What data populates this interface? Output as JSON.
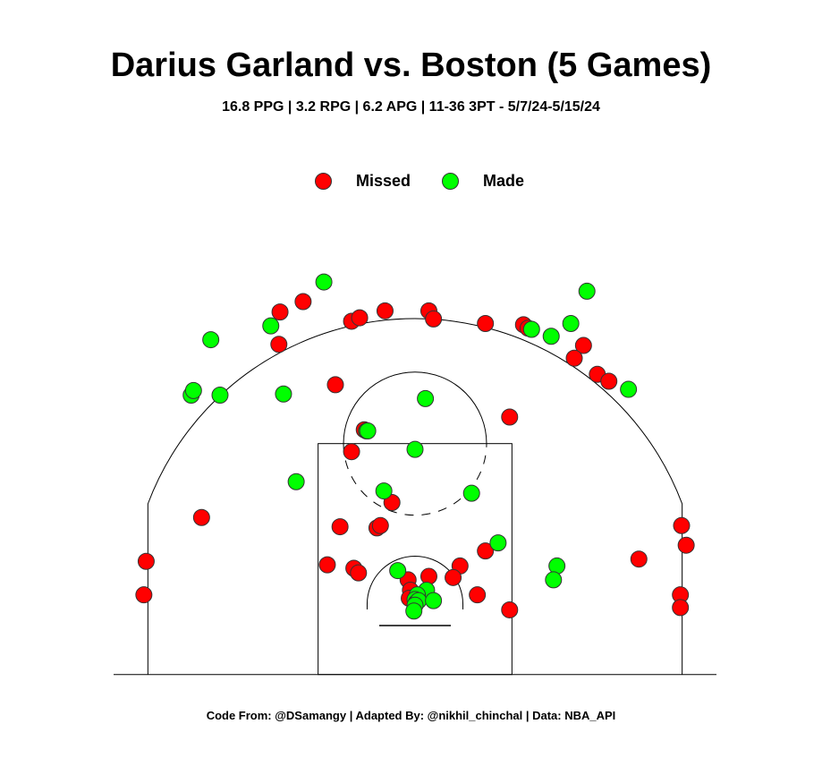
{
  "title": "Darius Garland vs. Boston (5 Games)",
  "subtitle": "16.8 PPG | 3.2 RPG | 6.2 APG | 11-36 3PT - 5/7/24-5/15/24",
  "caption": "Code From: @DSamangy | Adapted By: @nikhil_chinchal | Data: NBA_API",
  "colors": {
    "missed": "#ff0000",
    "made": "#00ff00",
    "court_line": "#000000"
  },
  "chart_data": {
    "type": "scatter",
    "legend": {
      "position": "top-center",
      "entries": [
        "Missed",
        "Made"
      ]
    },
    "grid": false,
    "units": "feet, relative to basket center (x lateral, y toward halfcourt)",
    "xlim": [
      -25,
      25
    ],
    "ylim": [
      -5.25,
      28
    ],
    "series": [
      {
        "name": "Missed",
        "color": "#ff0000",
        "points": [
          [
            -11.7,
            25.3
          ],
          [
            -9.7,
            26.2
          ],
          [
            -5.5,
            24.5
          ],
          [
            -4.8,
            24.8
          ],
          [
            -2.6,
            25.4
          ],
          [
            1.2,
            25.4
          ],
          [
            1.6,
            24.7
          ],
          [
            6.1,
            24.3
          ],
          [
            9.4,
            24.2
          ],
          [
            9.8,
            23.9
          ],
          [
            14.6,
            22.4
          ],
          [
            13.8,
            21.3
          ],
          [
            15.8,
            19.9
          ],
          [
            16.8,
            19.3
          ],
          [
            -11.8,
            22.5
          ],
          [
            -6.9,
            19.0
          ],
          [
            8.2,
            16.2
          ],
          [
            -4.4,
            15.1
          ],
          [
            -5.5,
            13.2
          ],
          [
            -18.5,
            7.5
          ],
          [
            -2.0,
            8.8
          ],
          [
            -6.5,
            6.7
          ],
          [
            -3.3,
            6.6
          ],
          [
            -3.0,
            6.8
          ],
          [
            -7.6,
            3.4
          ],
          [
            -5.3,
            3.1
          ],
          [
            -4.9,
            2.7
          ],
          [
            6.1,
            4.6
          ],
          [
            3.9,
            3.3
          ],
          [
            3.3,
            2.3
          ],
          [
            -0.6,
            2.1
          ],
          [
            1.2,
            2.4
          ],
          [
            -0.4,
            1.2
          ],
          [
            -0.5,
            0.5
          ],
          [
            5.4,
            0.8
          ],
          [
            8.2,
            -0.5
          ],
          [
            19.4,
            3.9
          ],
          [
            23.1,
            6.8
          ],
          [
            23.5,
            5.1
          ],
          [
            -23.3,
            3.7
          ],
          [
            -23.5,
            0.8
          ],
          [
            23.0,
            0.8
          ],
          [
            23.0,
            -0.3
          ]
        ]
      },
      {
        "name": "Made",
        "color": "#00ff00",
        "points": [
          [
            -7.9,
            27.9
          ],
          [
            -12.5,
            24.1
          ],
          [
            -17.7,
            22.9
          ],
          [
            -19.4,
            18.1
          ],
          [
            -19.2,
            18.5
          ],
          [
            -16.9,
            18.1
          ],
          [
            -11.4,
            18.2
          ],
          [
            0.9,
            17.8
          ],
          [
            -4.2,
            15.0
          ],
          [
            0.0,
            13.4
          ],
          [
            -10.3,
            10.6
          ],
          [
            -2.7,
            9.8
          ],
          [
            4.9,
            9.6
          ],
          [
            7.2,
            5.3
          ],
          [
            -1.5,
            2.9
          ],
          [
            12.3,
            3.3
          ],
          [
            12.0,
            2.1
          ],
          [
            1.0,
            1.2
          ],
          [
            0.2,
            0.8
          ],
          [
            0.0,
            0.4
          ],
          [
            0.1,
            0.1
          ],
          [
            0.3,
            0.3
          ],
          [
            1.6,
            0.3
          ],
          [
            0.0,
            -0.1
          ],
          [
            -0.1,
            -0.6
          ],
          [
            10.1,
            23.8
          ],
          [
            11.8,
            23.2
          ],
          [
            13.5,
            24.3
          ],
          [
            14.9,
            27.1
          ],
          [
            18.5,
            18.6
          ],
          [
            -4.1,
            15.0
          ]
        ]
      }
    ]
  }
}
